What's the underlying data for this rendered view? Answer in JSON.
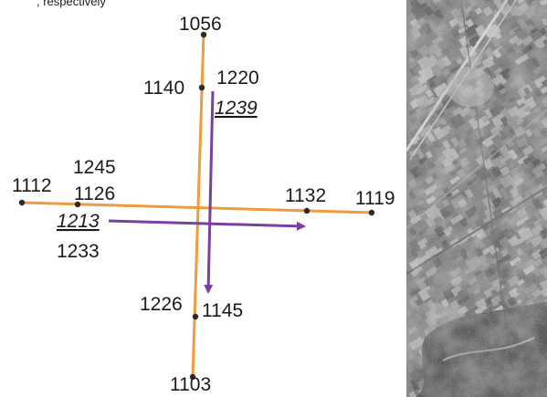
{
  "top_caption_fragment": ", respectively",
  "colors": {
    "orange_line": "#ef9a3c",
    "purple_arrow": "#7a3fa0",
    "point": "#2a2a2a",
    "text": "#1a1a1a"
  },
  "labels": {
    "top_end": "1056",
    "vertical_upper_node": "1140",
    "upper_right_a": "1220",
    "upper_right_b": "1239",
    "left_node_top": "1245",
    "left_node_bottom": "1126",
    "left_end": "1112",
    "right_node": "1132",
    "right_end": "1119",
    "under_left_a": "1213",
    "under_left_b": "1233",
    "lower_node_left": "1226",
    "lower_node_right": "1145",
    "bottom_end": "1103"
  },
  "image": {
    "type": "grayscale satellite image of farmland with fields, roads and a town",
    "icon": "satellite-photo"
  }
}
